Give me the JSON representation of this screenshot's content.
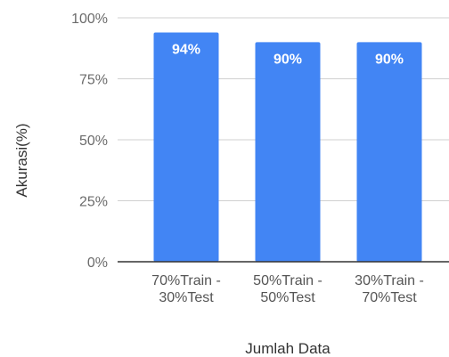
{
  "chart_data": {
    "type": "bar",
    "categories": [
      [
        "70%Train -",
        "30%Test"
      ],
      [
        "50%Train -",
        "50%Test"
      ],
      [
        "30%Train -",
        "70%Test"
      ]
    ],
    "values": [
      94,
      90,
      90
    ],
    "data_labels": [
      "94%",
      "90%",
      "90%"
    ],
    "title": "",
    "xlabel": "Jumlah Data",
    "ylabel": "Akurasi(%)",
    "ylim": [
      0,
      100
    ],
    "yticks": [
      {
        "value": 0,
        "label": "0%"
      },
      {
        "value": 25,
        "label": "25%"
      },
      {
        "value": 50,
        "label": "50%"
      },
      {
        "value": 75,
        "label": "75%"
      },
      {
        "value": 100,
        "label": "100%"
      }
    ],
    "grid": true,
    "legend": "none",
    "colors": {
      "bar": "#4285f4",
      "grid": "#d0d0d0",
      "baseline": "#333333"
    }
  }
}
